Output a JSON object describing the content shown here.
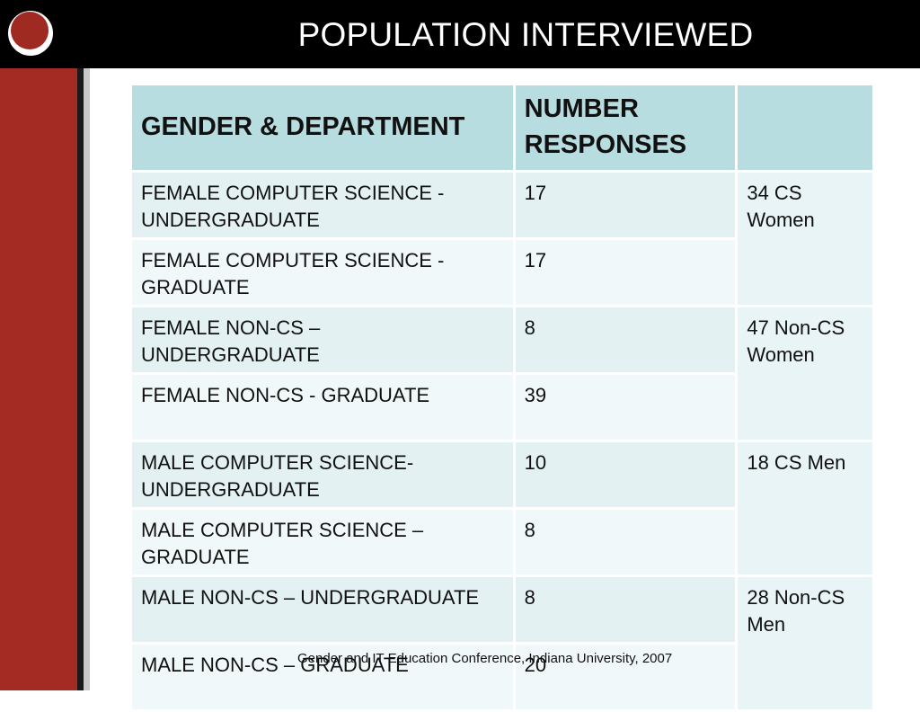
{
  "header": {
    "title": "POPULATION INTERVIEWED"
  },
  "table": {
    "columns": [
      "GENDER & DEPARTMENT",
      "NUMBER RESPONSES",
      ""
    ],
    "rows": [
      {
        "group": "FEMALE COMPUTER SCIENCE - UNDERGRADUATE",
        "count": "17"
      },
      {
        "group": "FEMALE COMPUTER SCIENCE - GRADUATE",
        "count": "17"
      },
      {
        "group": "FEMALE NON-CS – UNDERGRADUATE",
        "count": "8"
      },
      {
        "group": "FEMALE NON-CS  - GRADUATE",
        "count": "39"
      },
      {
        "group": "MALE COMPUTER SCIENCE- UNDERGRADUATE",
        "count": "10"
      },
      {
        "group": "MALE COMPUTER SCIENCE – GRADUATE",
        "count": "8"
      },
      {
        "group": "MALE NON-CS – UNDERGRADUATE",
        "count": "8"
      },
      {
        "group": "MALE NON-CS – GRADUATE",
        "count": "20"
      }
    ],
    "totals": [
      "34 CS Women",
      "47 Non-CS Women",
      "18 CS Men",
      "28 Non-CS Men"
    ]
  },
  "footer": {
    "text": "Gender and IT Education Conference, Indiana University, 2007"
  },
  "colors": {
    "title_bar": "#000000",
    "side_bar": "#a42a24",
    "header_cell": "#b8dde0",
    "row_cell": "#e3f1f3"
  }
}
